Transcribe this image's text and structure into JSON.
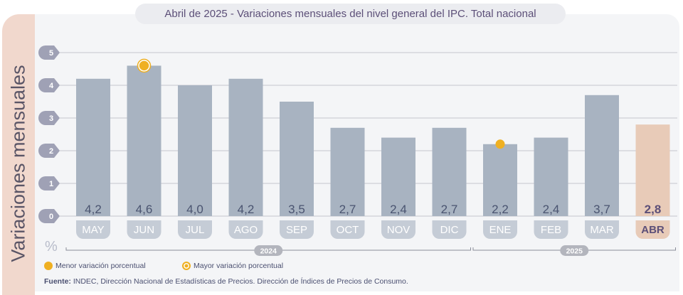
{
  "chart_data": {
    "type": "bar",
    "title": "Abril de 2025 - Variaciones mensuales del nivel general del IPC. Total nacional",
    "title_date": "Abril de 2025",
    "title_rest": " - Variaciones mensuales del nivel general del IPC. Total nacional",
    "ylabel": "Variaciones mensuales",
    "yunit": "%",
    "ylim": [
      0,
      5
    ],
    "yticks": [
      "0",
      "1",
      "2",
      "3",
      "4",
      "5"
    ],
    "categories": [
      "MAY",
      "JUN",
      "JUL",
      "AGO",
      "SEP",
      "OCT",
      "NOV",
      "DIC",
      "ENE",
      "FEB",
      "MAR",
      "ABR"
    ],
    "values": [
      4.2,
      4.6,
      4.0,
      4.2,
      3.5,
      2.7,
      2.4,
      2.7,
      2.2,
      2.4,
      3.7,
      2.8
    ],
    "value_labels": [
      "4,2",
      "4,6",
      "4,0",
      "4,2",
      "3,5",
      "2,7",
      "2,4",
      "2,7",
      "2,2",
      "2,4",
      "3,7",
      "2,8"
    ],
    "highlight_index": 11,
    "min_marker_index": 8,
    "max_marker_index": 1,
    "year_groups": [
      {
        "label": "2024",
        "from": 0,
        "to": 7
      },
      {
        "label": "2025",
        "from": 8,
        "to": 11
      }
    ],
    "colors": {
      "bar": "#a8b3c1",
      "highlight": "#e8cbb8",
      "marker": "#efb022"
    }
  },
  "legend": {
    "min": "Menor variación porcentual",
    "max": "Mayor variación porcentual"
  },
  "source": {
    "label": "Fuente:",
    "text": " INDEC, Dirección Nacional de Estadísticas de Precios. Dirección de Índices de Precios de Consumo."
  }
}
